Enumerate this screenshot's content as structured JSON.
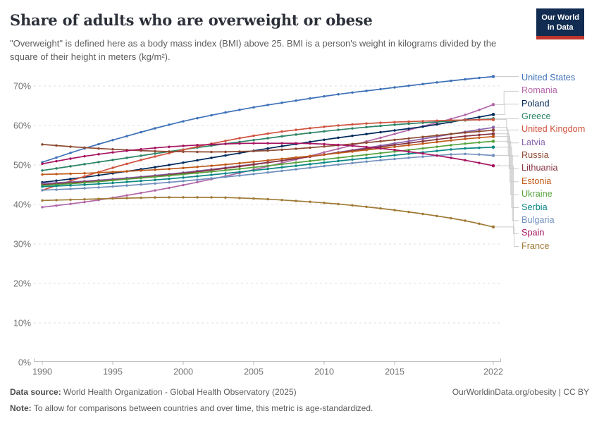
{
  "header": {
    "title": "Share of adults who are overweight or obese",
    "subtitle": "\"Overweight\" is defined here as a body mass index (BMI) above 25. BMI is a person's weight in kilograms divided by the square of their height in meters (kg/m²).",
    "logo_line1": "Our World",
    "logo_line2": "in Data",
    "logo_bg": "#112b51",
    "logo_stripe": "#c0362c"
  },
  "chart_data": {
    "type": "line",
    "title": "Share of adults who are overweight or obese",
    "xlabel": "",
    "ylabel": "",
    "xlim": [
      1990,
      2022
    ],
    "ylim": [
      0,
      73
    ],
    "xticks": [
      1990,
      1995,
      2000,
      2005,
      2010,
      2015,
      2022
    ],
    "yticks": [
      0,
      10,
      20,
      30,
      40,
      50,
      60,
      70
    ],
    "ytick_suffix": "%",
    "grid": "horizontal-dashed",
    "legend_position": "right",
    "markers_every_year": true,
    "anchor_years": [
      1990,
      1993,
      1996,
      1999,
      2002,
      2005,
      2008,
      2011,
      2014,
      2017,
      2020,
      2022
    ],
    "series": [
      {
        "name": "United States",
        "color": "#3e71b8",
        "values": [
          50.7,
          54.2,
          57.3,
          60.2,
          62.6,
          64.6,
          66.3,
          67.9,
          69.2,
          70.5,
          71.7,
          72.4
        ]
      },
      {
        "name": "Romania",
        "color": "#b368a9",
        "values": [
          39.3,
          40.6,
          42.3,
          44.2,
          46.4,
          48.8,
          51.4,
          54.1,
          56.9,
          59.8,
          62.7,
          65.3
        ]
      },
      {
        "name": "Poland",
        "color": "#00295b",
        "values": [
          45.6,
          46.9,
          48.4,
          50.0,
          51.8,
          53.6,
          55.3,
          56.9,
          58.3,
          59.7,
          61.5,
          62.8
        ]
      },
      {
        "name": "Greece",
        "color": "#2c8465",
        "values": [
          48.6,
          50.2,
          51.8,
          53.4,
          54.9,
          56.3,
          57.7,
          58.9,
          59.9,
          60.7,
          61.3,
          61.7
        ]
      },
      {
        "name": "United Kingdom",
        "color": "#d0533f",
        "values": [
          43.6,
          47.1,
          50.3,
          53.0,
          55.4,
          57.4,
          58.9,
          60.0,
          60.7,
          61.1,
          61.4,
          61.5
        ]
      },
      {
        "name": "Latvia",
        "color": "#8862ab",
        "values": [
          45.3,
          45.9,
          46.7,
          47.7,
          48.9,
          50.2,
          51.6,
          53.2,
          54.9,
          56.6,
          58.4,
          59.5
        ]
      },
      {
        "name": "Russia",
        "color": "#8e4a32",
        "values": [
          55.2,
          54.4,
          53.8,
          53.4,
          53.3,
          53.5,
          54.1,
          55.0,
          56.0,
          57.1,
          58.2,
          58.8
        ]
      },
      {
        "name": "Lithuania",
        "color": "#873340",
        "values": [
          45.0,
          45.7,
          46.5,
          47.5,
          48.7,
          50.1,
          51.6,
          53.1,
          54.6,
          56.0,
          57.3,
          57.9
        ]
      },
      {
        "name": "Estonia",
        "color": "#c05a19",
        "values": [
          47.6,
          47.9,
          48.4,
          49.0,
          49.8,
          50.8,
          51.9,
          53.0,
          54.2,
          55.4,
          56.6,
          57.2
        ]
      },
      {
        "name": "Ukraine",
        "color": "#57a33f",
        "values": [
          44.8,
          45.5,
          46.4,
          47.3,
          48.3,
          49.4,
          50.6,
          51.8,
          53.0,
          54.2,
          55.4,
          56.0
        ]
      },
      {
        "name": "Serbia",
        "color": "#0b8884",
        "values": [
          44.5,
          45.0,
          45.7,
          46.5,
          47.5,
          48.6,
          49.8,
          51.0,
          52.1,
          53.2,
          54.2,
          54.5
        ]
      },
      {
        "name": "Bulgaria",
        "color": "#7190bd",
        "values": [
          43.6,
          44.1,
          44.8,
          45.6,
          46.6,
          47.7,
          48.9,
          50.1,
          51.2,
          52.1,
          52.8,
          52.4
        ]
      },
      {
        "name": "Spain",
        "color": "#a61360",
        "values": [
          50.3,
          52.2,
          53.6,
          54.6,
          55.2,
          55.5,
          55.5,
          55.1,
          54.2,
          52.9,
          51.2,
          49.8
        ]
      },
      {
        "name": "France",
        "color": "#a07b36",
        "values": [
          41.0,
          41.3,
          41.6,
          41.8,
          41.8,
          41.5,
          40.9,
          40.1,
          39.0,
          37.6,
          35.9,
          34.3
        ]
      }
    ]
  },
  "footer": {
    "source_label": "Data source:",
    "source_text": "World Health Organization - Global Health Observatory (2025)",
    "right_text": "OurWorldinData.org/obesity | CC BY",
    "note_label": "Note:",
    "note_text": "To allow for comparisons between countries and over time, this metric is age-standardized."
  }
}
